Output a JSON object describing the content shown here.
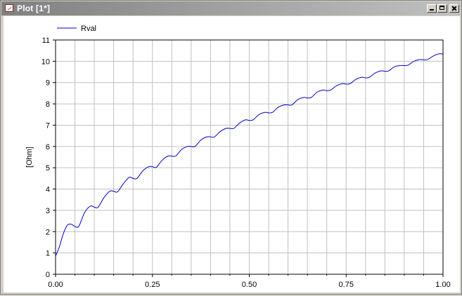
{
  "window": {
    "title": "Plot [1*]",
    "buttons": {
      "minimize": "minimize",
      "maximize": "maximize",
      "close": "close"
    }
  },
  "colors": {
    "line": "#0000cc",
    "grid": "#c0c0c0",
    "titlebar": "#808080"
  },
  "chart_data": {
    "type": "line",
    "ylabel": "[Ohm]",
    "xlabel": "",
    "xlim": [
      0,
      1
    ],
    "ylim": [
      0,
      11
    ],
    "xticks": [
      "0.00",
      "0.25",
      "0.50",
      "0.75",
      "1.00"
    ],
    "yticks": [
      "0",
      "1",
      "2",
      "3",
      "4",
      "5",
      "6",
      "7",
      "8",
      "9",
      "10",
      "11"
    ],
    "grid": true,
    "legend": "top-left",
    "series": [
      {
        "name": "Rval",
        "color": "#0000cc",
        "x": [
          0.0,
          0.01,
          0.02,
          0.03,
          0.04,
          0.05,
          0.06,
          0.075,
          0.09,
          0.1,
          0.11,
          0.125,
          0.14,
          0.15,
          0.16,
          0.175,
          0.19,
          0.2,
          0.21,
          0.225,
          0.24,
          0.25,
          0.26,
          0.275,
          0.29,
          0.3,
          0.31,
          0.325,
          0.34,
          0.35,
          0.36,
          0.375,
          0.39,
          0.4,
          0.41,
          0.425,
          0.44,
          0.45,
          0.46,
          0.475,
          0.49,
          0.5,
          0.51,
          0.525,
          0.54,
          0.55,
          0.56,
          0.575,
          0.59,
          0.6,
          0.61,
          0.625,
          0.64,
          0.65,
          0.66,
          0.675,
          0.69,
          0.7,
          0.71,
          0.725,
          0.74,
          0.75,
          0.76,
          0.775,
          0.79,
          0.8,
          0.81,
          0.825,
          0.84,
          0.85,
          0.86,
          0.875,
          0.89,
          0.9,
          0.91,
          0.925,
          0.94,
          0.95,
          0.96,
          0.975,
          0.99,
          1.0
        ],
        "values": [
          0.85,
          1.3,
          1.9,
          2.3,
          2.35,
          2.25,
          2.25,
          2.9,
          3.2,
          3.15,
          3.15,
          3.6,
          3.9,
          3.9,
          3.87,
          4.25,
          4.55,
          4.5,
          4.5,
          4.85,
          5.05,
          5.05,
          5.02,
          5.35,
          5.55,
          5.55,
          5.55,
          5.85,
          6.0,
          6.0,
          6.0,
          6.3,
          6.45,
          6.45,
          6.45,
          6.7,
          6.85,
          6.85,
          6.85,
          7.1,
          7.25,
          7.22,
          7.25,
          7.5,
          7.6,
          7.58,
          7.6,
          7.85,
          7.95,
          7.95,
          7.95,
          8.2,
          8.3,
          8.28,
          8.3,
          8.55,
          8.65,
          8.62,
          8.65,
          8.85,
          8.95,
          8.93,
          8.95,
          9.15,
          9.25,
          9.22,
          9.25,
          9.45,
          9.55,
          9.53,
          9.55,
          9.75,
          9.8,
          9.8,
          9.82,
          10.0,
          10.08,
          10.07,
          10.08,
          10.25,
          10.35,
          10.33
        ]
      }
    ]
  }
}
